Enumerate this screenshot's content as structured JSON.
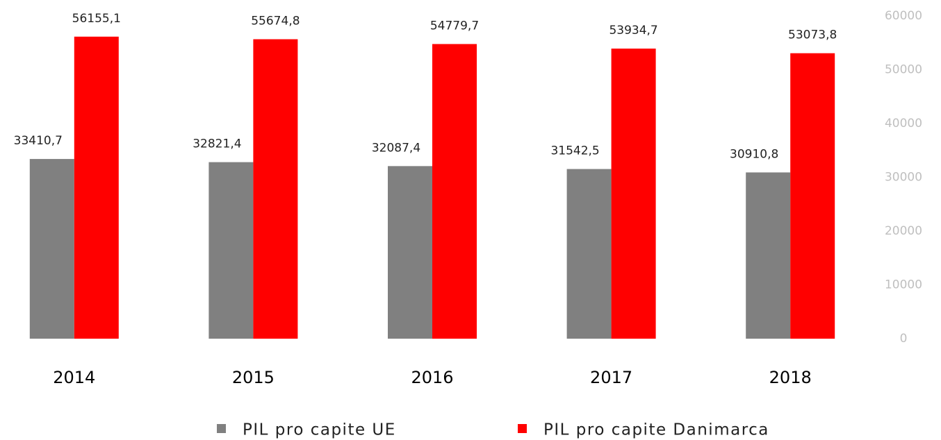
{
  "chart_data": {
    "type": "bar",
    "categories": [
      "2014",
      "2015",
      "2016",
      "2017",
      "2018"
    ],
    "series": [
      {
        "name": "PIL pro capite UE",
        "color": "#808080",
        "values": [
          33410.7,
          32821.4,
          32087.4,
          31542.5,
          30910.8
        ],
        "value_labels": [
          "33410,7",
          "32821,4",
          "32087,4",
          "31542,5",
          "30910,8"
        ]
      },
      {
        "name": "PIL pro capite Danimarca",
        "color": "#ff0000",
        "values": [
          56155.1,
          55674.8,
          54779.7,
          53934.7,
          53073.8
        ],
        "value_labels": [
          "56155,1",
          "55674,8",
          "54779,7",
          "53934,7",
          "53073,8"
        ]
      }
    ],
    "ylim": [
      0,
      60000
    ],
    "yticks": [
      0,
      10000,
      20000,
      30000,
      40000,
      50000,
      60000
    ],
    "y_axis_side": "right",
    "grid": false,
    "legend": "bottom"
  }
}
